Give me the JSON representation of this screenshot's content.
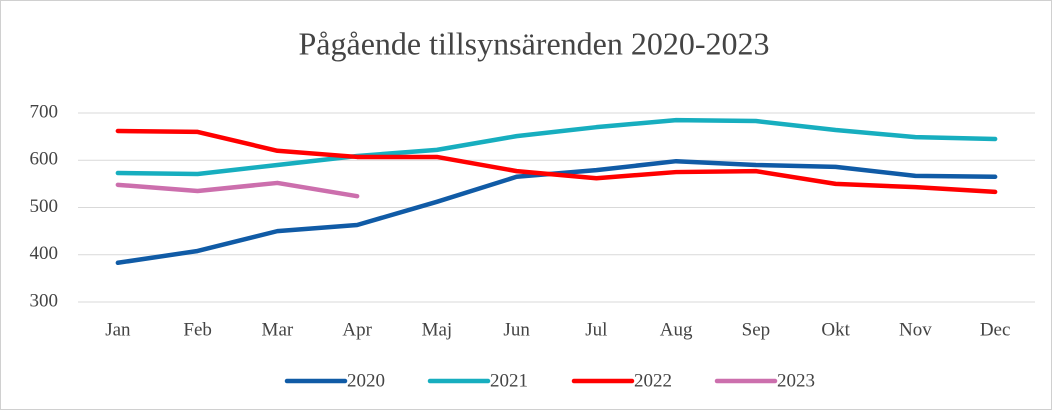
{
  "chart_data": {
    "type": "line",
    "title": "Pågående tillsynsärenden 2020-2023",
    "categories": [
      "Jan",
      "Feb",
      "Mar",
      "Apr",
      "Maj",
      "Jun",
      "Jul",
      "Aug",
      "Sep",
      "Okt",
      "Nov",
      "Dec"
    ],
    "series": [
      {
        "name": "2020",
        "color": "#105ba6",
        "values": [
          383,
          408,
          450,
          463,
          512,
          565,
          579,
          598,
          590,
          586,
          567,
          565
        ]
      },
      {
        "name": "2021",
        "color": "#17aebf",
        "values": [
          573,
          571,
          590,
          609,
          622,
          651,
          670,
          685,
          683,
          664,
          649,
          645
        ]
      },
      {
        "name": "2022",
        "color": "#ff0000",
        "values": [
          662,
          660,
          620,
          607,
          607,
          577,
          562,
          575,
          577,
          550,
          543,
          533
        ]
      },
      {
        "name": "2023",
        "color": "#cc6fad",
        "values": [
          548,
          535,
          552,
          524,
          null,
          null,
          null,
          null,
          null,
          null,
          null,
          null
        ]
      }
    ],
    "ylim": [
      300,
      700
    ],
    "yticks": [
      300,
      400,
      500,
      600,
      700
    ],
    "grid": true
  }
}
